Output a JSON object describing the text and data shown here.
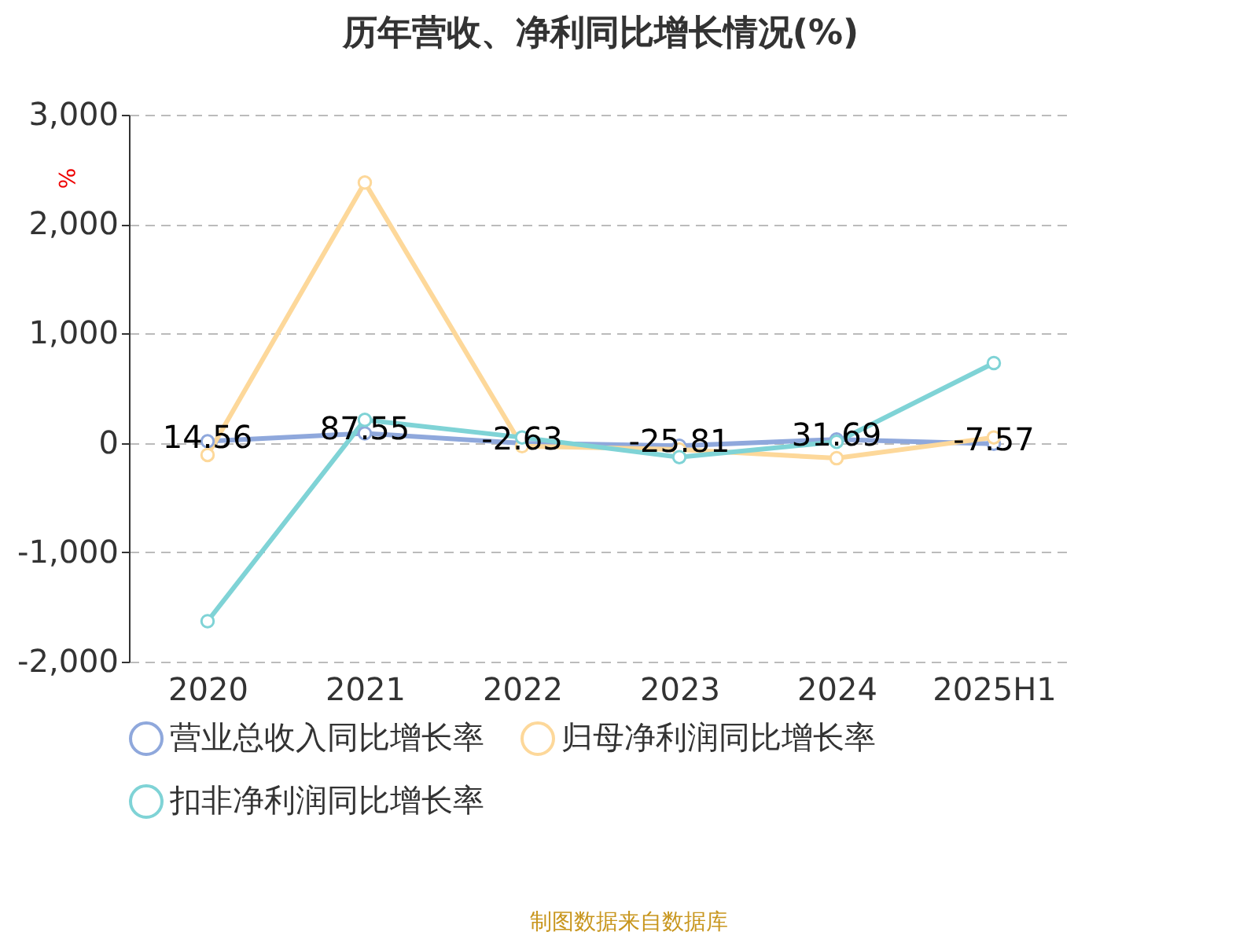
{
  "chart_data": {
    "type": "line",
    "title": "历年营收、净利同比增长情况(%)",
    "ylabel": "%",
    "categories": [
      "2020",
      "2021",
      "2022",
      "2023",
      "2024",
      "2025H1"
    ],
    "series": [
      {
        "name": "营业总收入同比增长率",
        "color": "#8fa8dc",
        "values": [
          14.56,
          87.55,
          -2.63,
          -25.81,
          31.69,
          -7.57
        ],
        "value_labels": [
          "14.56",
          "87.55",
          "-2.63",
          "-25.81",
          "31.69",
          "-7.57"
        ]
      },
      {
        "name": "归母净利润同比增长率",
        "color": "#fdd89a",
        "values": [
          -110,
          2380,
          -30,
          -60,
          -140,
          50
        ]
      },
      {
        "name": "扣非净利润同比增长率",
        "color": "#7fd3d6",
        "values": [
          -1630,
          210,
          50,
          -130,
          10,
          730
        ]
      }
    ],
    "ylim": [
      -2000,
      3000
    ],
    "yticks": [
      {
        "value": -2000,
        "label": "-2,000"
      },
      {
        "value": -1000,
        "label": "-1,000"
      },
      0,
      {
        "value": 1000,
        "label": "1,000"
      },
      {
        "value": 2000,
        "label": "2,000"
      },
      {
        "value": 3000,
        "label": "3,000"
      }
    ],
    "grid": "y",
    "legend": "bottom",
    "marker": "circle",
    "line_style": "solid",
    "annotations": [
      "制图数据来自数据库"
    ]
  }
}
